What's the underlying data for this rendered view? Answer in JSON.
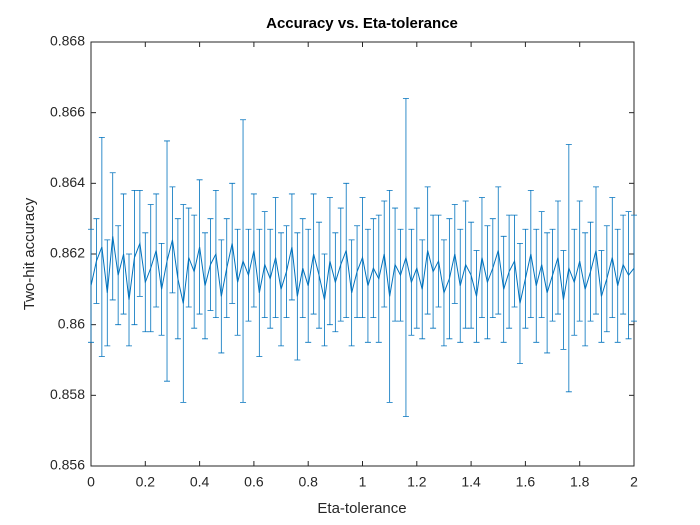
{
  "chart_data": {
    "type": "errorbar",
    "title": "Accuracy vs. Eta-tolerance",
    "x_label": "Eta-tolerance",
    "y_label": "Two-hit accuracy",
    "xlim": [
      0,
      2
    ],
    "xticks": [
      0,
      0.2,
      0.4,
      0.6,
      0.8,
      1,
      1.2,
      1.4,
      1.6,
      1.8,
      2
    ],
    "ylim": [
      0.856,
      0.868
    ],
    "yticks": [
      0.856,
      0.858,
      0.86,
      0.862,
      0.864,
      0.866,
      0.868
    ],
    "grid": false,
    "x": [
      0,
      0.02,
      0.04,
      0.06,
      0.08,
      0.1,
      0.12,
      0.14,
      0.16,
      0.18,
      0.2,
      0.22,
      0.24,
      0.26,
      0.28,
      0.3,
      0.32,
      0.34,
      0.36,
      0.38,
      0.4,
      0.42,
      0.44,
      0.46,
      0.48,
      0.5,
      0.52,
      0.54,
      0.56,
      0.58,
      0.6,
      0.62,
      0.64,
      0.66,
      0.68,
      0.7,
      0.72,
      0.74,
      0.76,
      0.78,
      0.8,
      0.82,
      0.84,
      0.86,
      0.88,
      0.9,
      0.92,
      0.94,
      0.96,
      0.98,
      1,
      1.02,
      1.04,
      1.06,
      1.08,
      1.1,
      1.12,
      1.14,
      1.16,
      1.18,
      1.2,
      1.22,
      1.24,
      1.26,
      1.28,
      1.3,
      1.32,
      1.34,
      1.36,
      1.38,
      1.4,
      1.42,
      1.44,
      1.46,
      1.48,
      1.5,
      1.52,
      1.54,
      1.56,
      1.58,
      1.6,
      1.62,
      1.64,
      1.66,
      1.68,
      1.7,
      1.72,
      1.74,
      1.76,
      1.78,
      1.8,
      1.82,
      1.84,
      1.86,
      1.88,
      1.9,
      1.92,
      1.94,
      1.96,
      1.98,
      2
    ],
    "series": [
      {
        "color": "#0072bd",
        "values": [
          0.8611,
          0.8618,
          0.8622,
          0.8609,
          0.8625,
          0.8614,
          0.862,
          0.8607,
          0.8619,
          0.8623,
          0.8612,
          0.8616,
          0.8621,
          0.861,
          0.8618,
          0.8624,
          0.8613,
          0.8606,
          0.8619,
          0.8615,
          0.8622,
          0.8611,
          0.8617,
          0.862,
          0.8608,
          0.8616,
          0.8623,
          0.8612,
          0.8618,
          0.8614,
          0.8621,
          0.8609,
          0.8617,
          0.8613,
          0.8619,
          0.861,
          0.8615,
          0.8622,
          0.8608,
          0.8616,
          0.8611,
          0.862,
          0.8614,
          0.8607,
          0.8618,
          0.8612,
          0.8617,
          0.8621,
          0.8609,
          0.8615,
          0.8619,
          0.8611,
          0.8616,
          0.8613,
          0.862,
          0.8608,
          0.8617,
          0.8614,
          0.8619,
          0.8612,
          0.8616,
          0.861,
          0.8621,
          0.8615,
          0.8618,
          0.8609,
          0.8613,
          0.862,
          0.8611,
          0.8617,
          0.8614,
          0.8608,
          0.8619,
          0.8612,
          0.8616,
          0.8621,
          0.861,
          0.8615,
          0.8618,
          0.8606,
          0.8613,
          0.862,
          0.8611,
          0.8617,
          0.8609,
          0.8614,
          0.8619,
          0.8607,
          0.8616,
          0.8612,
          0.8618,
          0.861,
          0.8615,
          0.8621,
          0.8608,
          0.8613,
          0.8619,
          0.8611,
          0.8617,
          0.8614,
          0.8616
        ],
        "errors": [
          0.0016,
          0.0012,
          0.0031,
          0.0015,
          0.0018,
          0.0014,
          0.0017,
          0.0013,
          0.0019,
          0.0015,
          0.0014,
          0.0018,
          0.0016,
          0.0013,
          0.0034,
          0.0015,
          0.0017,
          0.0028,
          0.0014,
          0.0016,
          0.0019,
          0.0015,
          0.0013,
          0.0018,
          0.0016,
          0.0014,
          0.0017,
          0.0015,
          0.004,
          0.0013,
          0.0016,
          0.0018,
          0.0015,
          0.0014,
          0.0017,
          0.0016,
          0.0013,
          0.0015,
          0.0018,
          0.0014,
          0.0016,
          0.0017,
          0.0015,
          0.0013,
          0.0018,
          0.0014,
          0.0016,
          0.0019,
          0.0015,
          0.0013,
          0.0017,
          0.0016,
          0.0014,
          0.0018,
          0.0015,
          0.003,
          0.0016,
          0.0013,
          0.0045,
          0.0015,
          0.0017,
          0.0014,
          0.0018,
          0.0016,
          0.0013,
          0.0015,
          0.0017,
          0.0014,
          0.0016,
          0.0018,
          0.0015,
          0.0013,
          0.0017,
          0.0016,
          0.0014,
          0.0018,
          0.0015,
          0.0016,
          0.0013,
          0.0017,
          0.0014,
          0.0018,
          0.0016,
          0.0015,
          0.0017,
          0.0013,
          0.0016,
          0.0014,
          0.0035,
          0.0015,
          0.0017,
          0.0016,
          0.0014,
          0.0018,
          0.0013,
          0.0015,
          0.0017,
          0.0016,
          0.0014,
          0.0018,
          0.0015
        ]
      }
    ]
  }
}
